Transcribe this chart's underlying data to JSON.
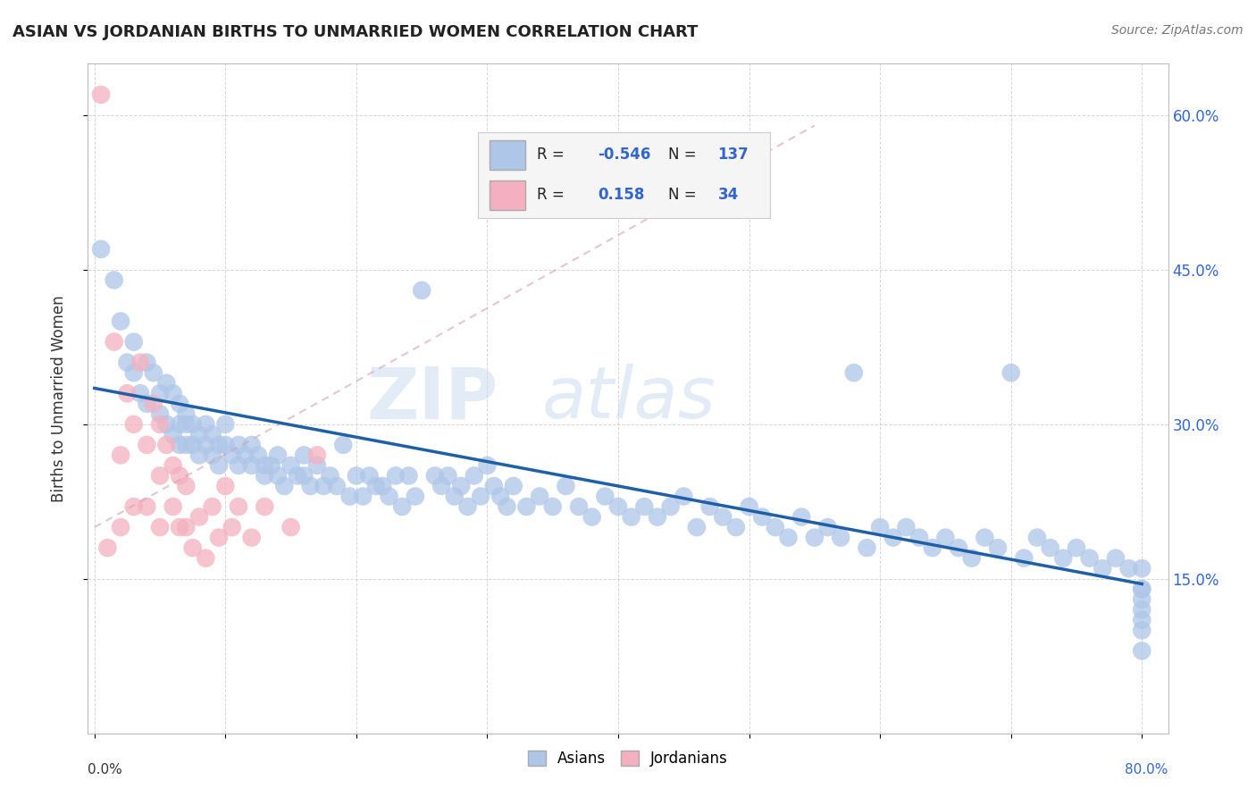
{
  "title": "ASIAN VS JORDANIAN BIRTHS TO UNMARRIED WOMEN CORRELATION CHART",
  "source": "Source: ZipAtlas.com",
  "ylabel": "Births to Unmarried Women",
  "xlim": [
    -0.005,
    0.82
  ],
  "ylim": [
    0.0,
    0.65
  ],
  "xticks": [
    0.0,
    0.1,
    0.2,
    0.3,
    0.4,
    0.5,
    0.6,
    0.7,
    0.8
  ],
  "yticks": [
    0.15,
    0.3,
    0.45,
    0.6
  ],
  "xticklabels_bottom": [
    "0.0%",
    "",
    "",
    "",
    "",
    "",
    "",
    "",
    "80.0%"
  ],
  "yticklabels_right": [
    "15.0%",
    "30.0%",
    "45.0%",
    "60.0%"
  ],
  "asian_R": -0.546,
  "asian_N": 137,
  "jordanian_R": 0.158,
  "jordanian_N": 34,
  "asian_color": "#aec6e8",
  "asian_line_color": "#1f5fa6",
  "jordanian_color": "#f4b0c0",
  "jordanian_line_color": "#d08090",
  "watermark_part1": "ZIP",
  "watermark_part2": "atlas",
  "background_color": "#ffffff",
  "grid_color": "#cccccc",
  "title_color": "#222222",
  "legend_R_color": "#3366cc",
  "legend_N_color": "#3366cc",
  "legend_label_color": "#222222",
  "asian_x": [
    0.005,
    0.015,
    0.02,
    0.025,
    0.03,
    0.03,
    0.035,
    0.04,
    0.04,
    0.045,
    0.05,
    0.05,
    0.055,
    0.055,
    0.06,
    0.06,
    0.065,
    0.065,
    0.065,
    0.07,
    0.07,
    0.07,
    0.075,
    0.075,
    0.08,
    0.08,
    0.085,
    0.085,
    0.09,
    0.09,
    0.095,
    0.095,
    0.1,
    0.1,
    0.105,
    0.11,
    0.11,
    0.115,
    0.12,
    0.12,
    0.125,
    0.13,
    0.13,
    0.135,
    0.14,
    0.14,
    0.145,
    0.15,
    0.155,
    0.16,
    0.16,
    0.165,
    0.17,
    0.175,
    0.18,
    0.185,
    0.19,
    0.195,
    0.2,
    0.205,
    0.21,
    0.215,
    0.22,
    0.225,
    0.23,
    0.235,
    0.24,
    0.245,
    0.25,
    0.26,
    0.265,
    0.27,
    0.275,
    0.28,
    0.285,
    0.29,
    0.295,
    0.3,
    0.305,
    0.31,
    0.315,
    0.32,
    0.33,
    0.34,
    0.35,
    0.36,
    0.37,
    0.38,
    0.39,
    0.4,
    0.41,
    0.42,
    0.43,
    0.44,
    0.45,
    0.46,
    0.47,
    0.48,
    0.49,
    0.5,
    0.51,
    0.52,
    0.53,
    0.54,
    0.55,
    0.56,
    0.57,
    0.58,
    0.59,
    0.6,
    0.61,
    0.62,
    0.63,
    0.64,
    0.65,
    0.66,
    0.67,
    0.68,
    0.69,
    0.7,
    0.71,
    0.72,
    0.73,
    0.74,
    0.75,
    0.76,
    0.77,
    0.78,
    0.79,
    0.8,
    0.8,
    0.8,
    0.8,
    0.8,
    0.8,
    0.8,
    0.8
  ],
  "asian_y": [
    0.47,
    0.44,
    0.4,
    0.36,
    0.38,
    0.35,
    0.33,
    0.36,
    0.32,
    0.35,
    0.33,
    0.31,
    0.34,
    0.3,
    0.33,
    0.29,
    0.32,
    0.3,
    0.28,
    0.31,
    0.3,
    0.28,
    0.3,
    0.28,
    0.29,
    0.27,
    0.3,
    0.28,
    0.29,
    0.27,
    0.28,
    0.26,
    0.3,
    0.28,
    0.27,
    0.28,
    0.26,
    0.27,
    0.28,
    0.26,
    0.27,
    0.26,
    0.25,
    0.26,
    0.27,
    0.25,
    0.24,
    0.26,
    0.25,
    0.27,
    0.25,
    0.24,
    0.26,
    0.24,
    0.25,
    0.24,
    0.28,
    0.23,
    0.25,
    0.23,
    0.25,
    0.24,
    0.24,
    0.23,
    0.25,
    0.22,
    0.25,
    0.23,
    0.43,
    0.25,
    0.24,
    0.25,
    0.23,
    0.24,
    0.22,
    0.25,
    0.23,
    0.26,
    0.24,
    0.23,
    0.22,
    0.24,
    0.22,
    0.23,
    0.22,
    0.24,
    0.22,
    0.21,
    0.23,
    0.22,
    0.21,
    0.22,
    0.21,
    0.22,
    0.23,
    0.2,
    0.22,
    0.21,
    0.2,
    0.22,
    0.21,
    0.2,
    0.19,
    0.21,
    0.19,
    0.2,
    0.19,
    0.35,
    0.18,
    0.2,
    0.19,
    0.2,
    0.19,
    0.18,
    0.19,
    0.18,
    0.17,
    0.19,
    0.18,
    0.35,
    0.17,
    0.19,
    0.18,
    0.17,
    0.18,
    0.17,
    0.16,
    0.17,
    0.16,
    0.14,
    0.13,
    0.11,
    0.16,
    0.14,
    0.12,
    0.1,
    0.08
  ],
  "jordanian_x": [
    0.005,
    0.01,
    0.015,
    0.02,
    0.02,
    0.025,
    0.03,
    0.03,
    0.035,
    0.04,
    0.04,
    0.045,
    0.05,
    0.05,
    0.05,
    0.055,
    0.06,
    0.06,
    0.065,
    0.065,
    0.07,
    0.07,
    0.075,
    0.08,
    0.085,
    0.09,
    0.095,
    0.1,
    0.105,
    0.11,
    0.12,
    0.13,
    0.15,
    0.17
  ],
  "jordanian_y": [
    0.62,
    0.18,
    0.38,
    0.27,
    0.2,
    0.33,
    0.3,
    0.22,
    0.36,
    0.28,
    0.22,
    0.32,
    0.3,
    0.25,
    0.2,
    0.28,
    0.26,
    0.22,
    0.25,
    0.2,
    0.24,
    0.2,
    0.18,
    0.21,
    0.17,
    0.22,
    0.19,
    0.24,
    0.2,
    0.22,
    0.19,
    0.22,
    0.2,
    0.27
  ]
}
